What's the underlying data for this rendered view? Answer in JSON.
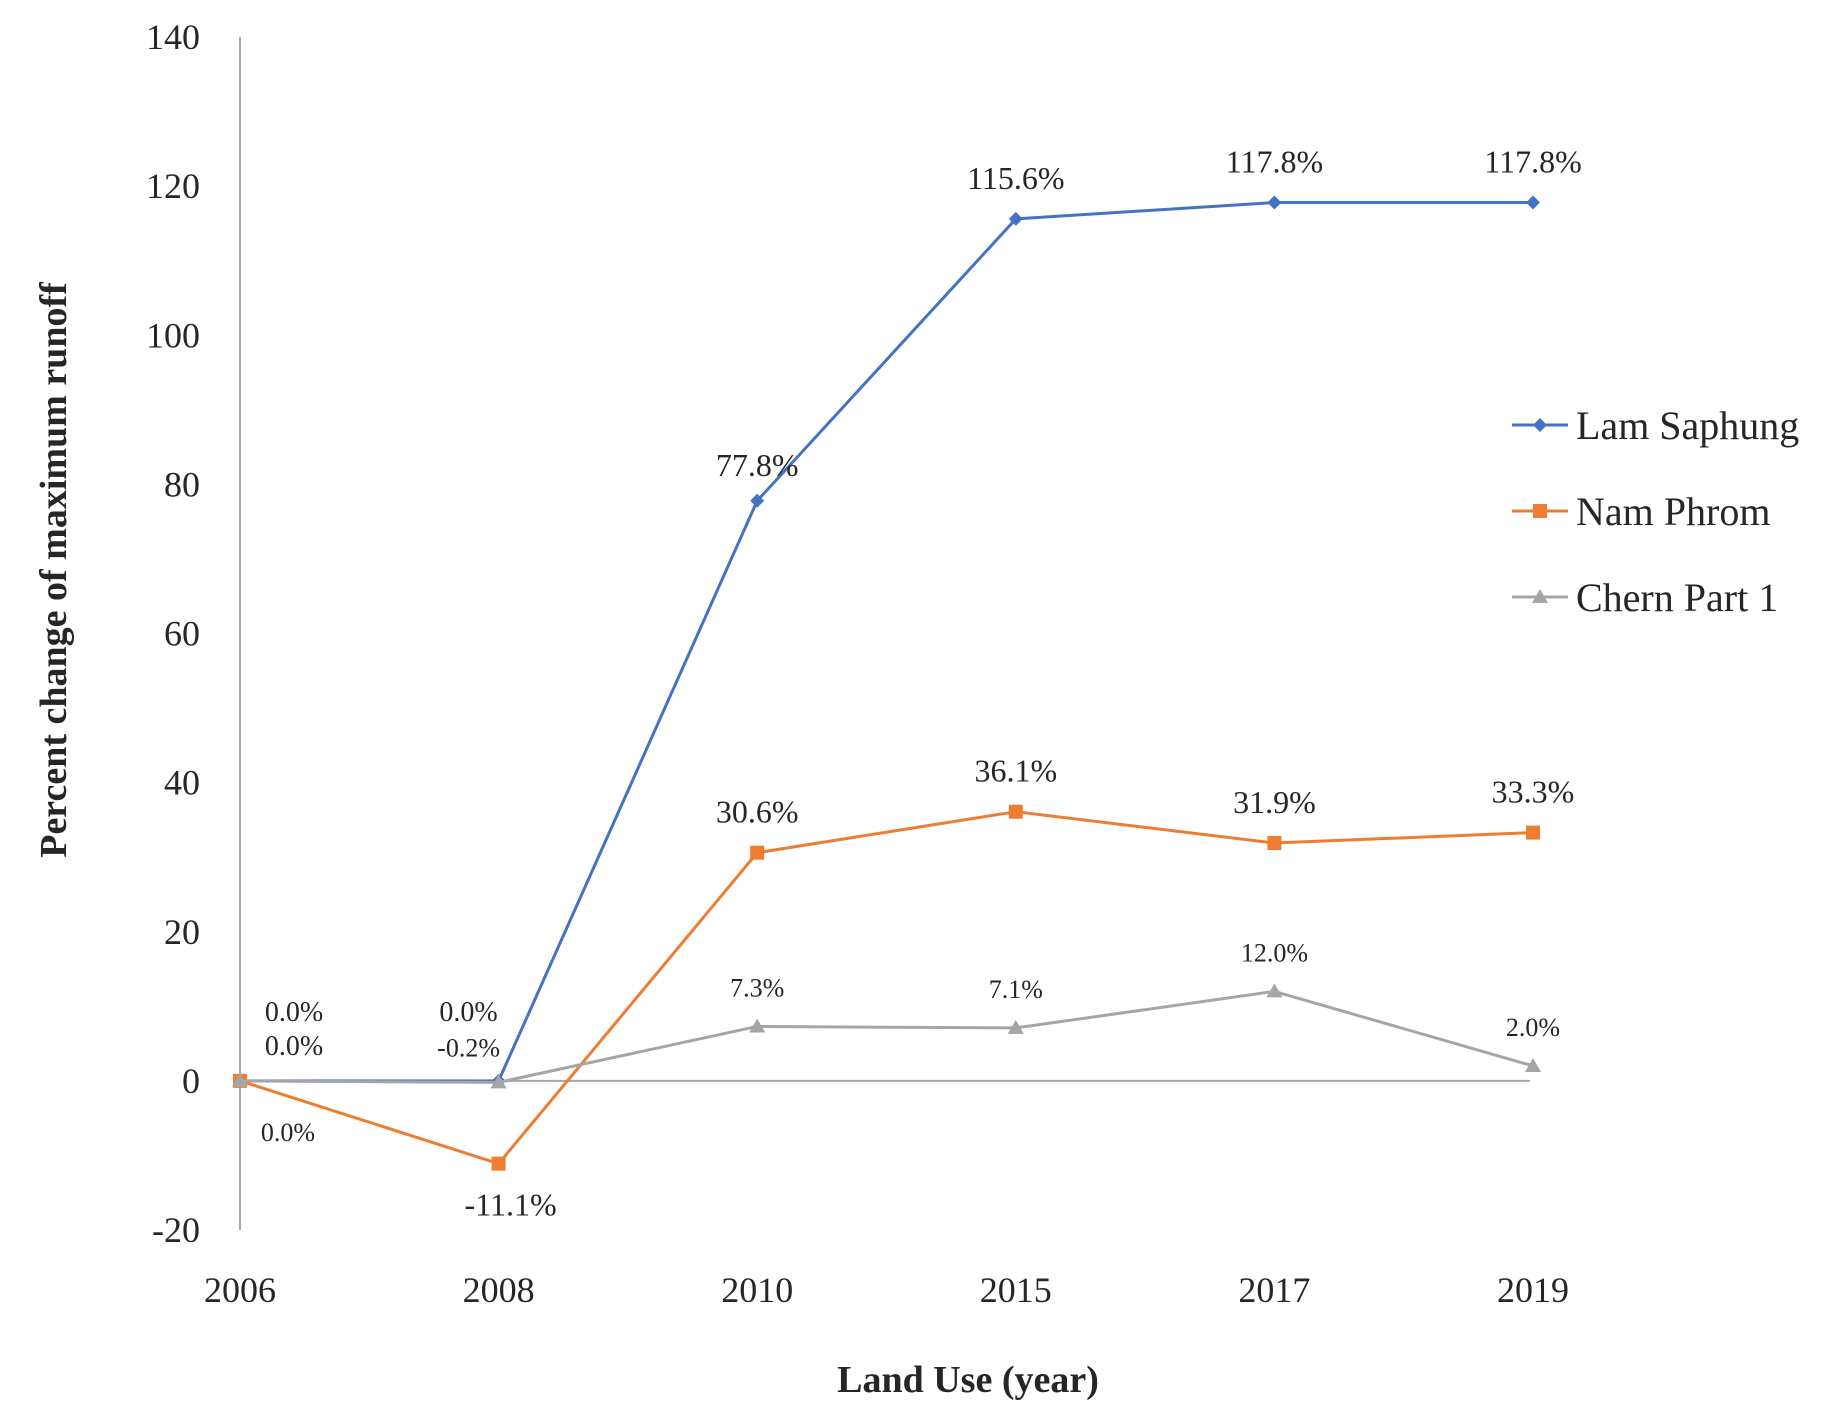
{
  "chart_data": {
    "type": "line",
    "title": "",
    "xlabel": "Land Use (year)",
    "ylabel": "Percent change of maximum runoff",
    "categories": [
      "2006",
      "2008",
      "2010",
      "2015",
      "2017",
      "2019"
    ],
    "ylim": [
      -20,
      140
    ],
    "yticks": [
      -20,
      0,
      20,
      40,
      60,
      80,
      100,
      120,
      140
    ],
    "ytick_labels": [
      "-20",
      "0",
      "20",
      "40",
      "60",
      "80",
      "100",
      "120",
      "140"
    ],
    "grid": false,
    "legend_position": "right",
    "series": [
      {
        "name": "Lam Saphung",
        "color": "#4472C4",
        "marker": "diamond",
        "values": [
          0.0,
          0.0,
          77.8,
          115.6,
          117.8,
          117.8
        ],
        "labels": [
          "0.0%",
          "0.0%",
          "77.8%",
          "115.6%",
          "117.8%",
          "117.8%"
        ]
      },
      {
        "name": "Nam Phrom",
        "color": "#ED7D31",
        "marker": "square",
        "values": [
          0.0,
          -11.1,
          30.6,
          36.1,
          31.9,
          33.3
        ],
        "labels": [
          "0.0%",
          "-11.1%",
          "30.6%",
          "36.1%",
          "31.9%",
          "33.3%"
        ]
      },
      {
        "name": "Chern Part 1",
        "color": "#A5A5A5",
        "marker": "triangle",
        "values": [
          0.0,
          -0.2,
          7.3,
          7.1,
          12.0,
          2.0
        ],
        "labels": [
          "0.0%",
          "-0.2%",
          "7.3%",
          "7.1%",
          "12.0%",
          "2.0%"
        ]
      }
    ]
  }
}
